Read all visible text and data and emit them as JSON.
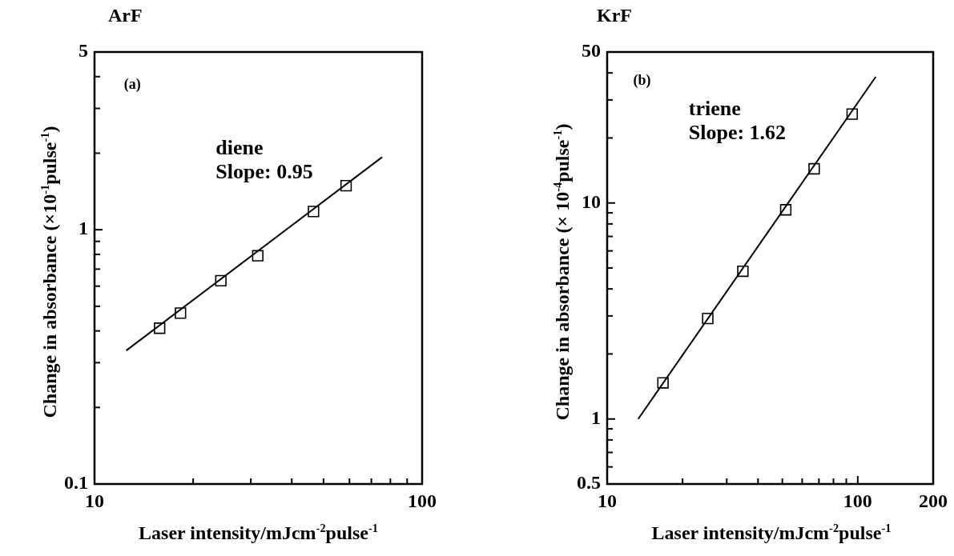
{
  "chart_data": [
    {
      "type": "scatter",
      "title": "ArF",
      "xlabel": "Laser intensity/mJcm$^{-2}$pulse$^{-1}$",
      "ylabel": "Change in absorbance (×10$^{-1}$pulse$^{-1}$)",
      "log": "xy",
      "marker": "square",
      "xlim": [
        10,
        100
      ],
      "ylim": [
        0.1,
        5
      ],
      "xticks": [
        10,
        {
          "value": 20,
          "label": null
        },
        {
          "value": 30,
          "label": null
        },
        {
          "value": 40,
          "label": null
        },
        {
          "value": 50,
          "label": null
        },
        {
          "value": 60,
          "label": null
        },
        {
          "value": 70,
          "label": null
        },
        {
          "value": 80,
          "label": null
        },
        {
          "value": 90,
          "label": null
        },
        100
      ],
      "yticks": [
        0.1,
        {
          "value": 0.2,
          "label": null
        },
        {
          "value": 0.3,
          "label": null
        },
        {
          "value": 0.4,
          "label": null
        },
        {
          "value": 0.5,
          "label": null
        },
        {
          "value": 0.6,
          "label": null
        },
        {
          "value": 0.7,
          "label": null
        },
        {
          "value": 0.8,
          "label": null
        },
        {
          "value": 0.9,
          "label": null
        },
        1,
        {
          "value": 2,
          "label": null
        },
        {
          "value": 3,
          "label": null
        },
        {
          "value": 4,
          "label": null
        },
        5
      ],
      "annotations": [
        "(a)",
        "diene",
        "Slope: 0.95"
      ],
      "series": [
        {
          "color": "#000000",
          "x": [
            15.8,
            18.3,
            24.3,
            31.5,
            46.6,
            58.6
          ],
          "values": [
            0.41,
            0.47,
            0.63,
            0.79,
            1.18,
            1.49
          ]
        },
        {
          "type": "line",
          "marker": "none",
          "color": "#000000",
          "x": [
            12.5,
            75.5
          ],
          "values": [
            0.335,
            1.93
          ]
        }
      ]
    },
    {
      "type": "scatter",
      "title": "KrF",
      "xlabel": "Laser intensity/mJcm$^{-2}$pulse$^{-1}$",
      "ylabel": "Change in absorbance (× 10$^{-4}$pulse$^{-1}$)",
      "log": "xy",
      "marker": "square",
      "xlim": [
        10,
        200
      ],
      "ylim": [
        0.5,
        50
      ],
      "xticks": [
        10,
        {
          "value": 20,
          "label": null
        },
        {
          "value": 30,
          "label": null
        },
        {
          "value": 40,
          "label": null
        },
        {
          "value": 50,
          "label": null
        },
        {
          "value": 60,
          "label": null
        },
        {
          "value": 70,
          "label": null
        },
        {
          "value": 80,
          "label": null
        },
        {
          "value": 90,
          "label": null
        },
        100,
        200
      ],
      "yticks": [
        0.5,
        {
          "value": 0.6,
          "label": null
        },
        {
          "value": 0.7,
          "label": null
        },
        {
          "value": 0.8,
          "label": null
        },
        {
          "value": 0.9,
          "label": null
        },
        1,
        {
          "value": 2,
          "label": null
        },
        {
          "value": 3,
          "label": null
        },
        {
          "value": 4,
          "label": null
        },
        {
          "value": 5,
          "label": null
        },
        {
          "value": 6,
          "label": null
        },
        {
          "value": 7,
          "label": null
        },
        {
          "value": 8,
          "label": null
        },
        {
          "value": 9,
          "label": null
        },
        10,
        {
          "value": 20,
          "label": null
        },
        {
          "value": 30,
          "label": null
        },
        {
          "value": 40,
          "label": null
        },
        50
      ],
      "annotations": [
        "(b)",
        "triene",
        "Slope: 1.62"
      ],
      "series": [
        {
          "color": "#000000",
          "x": [
            16.7,
            25.2,
            34.8,
            51.6,
            67,
            95
          ],
          "values": [
            1.47,
            2.92,
            4.83,
            9.3,
            14.4,
            25.8
          ]
        },
        {
          "type": "line",
          "marker": "none",
          "color": "#000000",
          "x": [
            13.3,
            118
          ],
          "values": [
            1.0,
            38.4
          ]
        }
      ]
    }
  ]
}
